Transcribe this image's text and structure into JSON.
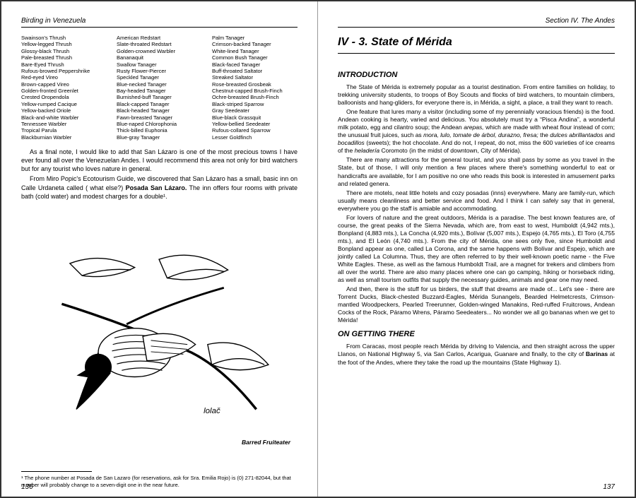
{
  "left": {
    "running_head": "Birding in Venezuela",
    "page_num": "136",
    "col1": [
      "Swainson's Thrush",
      "Yellow-legged Thrush",
      "Glossy-black Thrush",
      "Pale-breasted Thrush",
      "Bare-Eyed Thrush",
      "Rufous-browed Peppershrike",
      "Red-eyed Vireo",
      "Brown-capped Vireo",
      "Golden-fronted Greenlet",
      "Crested Oropendola",
      "Yellow-rumped Cacique",
      "Yellow-backed Oriole",
      "Black-and-white Warbler",
      "Tennessee Warbler",
      "Tropical Parula",
      "Blackburnian Warbler"
    ],
    "col2": [
      "American Redstart",
      "Slate-throated Redstart",
      "Golden-crowned Warbler",
      "Bananaquit",
      "Swallow Tanager",
      "Rusty Flower-Piercer",
      "Speckled Tanager",
      "Blue-necked Tanager",
      "Bay-headed Tanager",
      "Burnished-buff Tanager",
      "Black-capped Tanager",
      "Black-headed Tanager",
      "Fawn-breasted Tanager",
      "Blue-naped Chlorophonia",
      "Thick-billed Euphonia",
      "Blue-gray Tanager"
    ],
    "col3": [
      "Palm Tanager",
      "Crimson-backed Tanager",
      "White-lined Tanager",
      "Common Bush Tanager",
      "Black-faced Tanager",
      "Buff-throated Saltator",
      "Streaked Saltator",
      "Rose-breasted Grosbeak",
      "Chestnut-capped Brush-Finch",
      "Ochre-breasted Brush-Finch",
      "Black-striped Sparrow",
      "Gray Seedeater",
      "Blue-black Grassquit",
      "Yellow-bellied Seedeater",
      "Rufous-collared Sparrow",
      "Lesser Goldfinch"
    ],
    "para1": "As a final note, I would like to add that San Lázaro is one of the most precious towns I have ever found all over the Venezuelan Andes. I would recommend this area not only for bird watchers but for any tourist who loves nature in general.",
    "para2_a": "From Miro Popic's Ecotourism Guide, we discovered that San Lázaro has a small, basic inn on Calle Urdaneta called ( what else?) ",
    "para2_b": "Posada San Lázaro.",
    "para2_c": " The inn offers four rooms with private bath (cold water) and modest charges for a double¹.",
    "caption": "Barred Fruiteater",
    "footnote": "¹  The phone number at Posada de San Lazaro (for reservations, ask for Sra. Emilia Rojo) is (0) 271-82044, but that number will probably change to a seven-digit one in the near future."
  },
  "right": {
    "running_head": "Section IV. The Andes",
    "page_num": "137",
    "chapter_title": "IV - 3. State of Mérida",
    "intro_head": "INTRODUCTION",
    "p1": "The State of Mérida is extremely popular as a tourist destination. From entire families on holiday, to trekking university students, to troops of Boy Scouts and flocks of bird watchers, to mountain climbers, balloonists and hang-gliders, for everyone there is, in Mérida, a sight, a place, a trail they want to reach.",
    "p2_a": "One feature that lures many a visitor (including some of my perennially voracious friends) is the food. Andean cooking is hearty, varied and delicious. You absolutely must try a “Pisca Andina”, a wonderful milk potato, egg and cilantro soup; the Andean ",
    "p2_b": "arepas,",
    "p2_c": " which are made with wheat flour instead of corn; the unusual fruit juices, such as ",
    "p2_d": "mora, lulo, tomate de árbol, durazno, fresa;",
    "p2_e": " the ",
    "p2_f": "dulces abrillantados",
    "p2_g": " and ",
    "p2_h": "bocadillos",
    "p2_i": " (sweets); the hot chocolate. And do not, I repeat, do not, miss the 600 varieties of ice creams of the ",
    "p2_j": "heladería",
    "p2_k": " Coromoto (in the midst of downtown, City of Mérida).",
    "p3": "There are many attractions for the general tourist, and you shall pass by some as you travel in the State, but of those, I will only mention a few places where there's something wonderful to eat or handicrafts are available, for I am positive no one who reads this book is interested in amusement parks and related genera.",
    "p4": "There are motels, neat little hotels and cozy posadas (inns) everywhere. Many are family-run, which usually means cleanliness and better service and food. And I think I can safely say that in general, everywhere you go the staff is amiable and accommodating.",
    "p5": "For lovers of nature and the great outdoors, Mérida is a paradise. The best known features are, of course, the great peaks of the Sierra Nevada, which are, from east to west, Humboldt (4,942 mts.), Bonpland (4,883 mts.), La Concha (4,920 mts.), Bolívar (5,007 mts.), Espejo (4,765 mts.), El Toro (4,755 mts.), and El León (4,740 mts.). From the city of Mérida, one sees only five, since Humboldt and Bonpland appear as one, called La Corona, and the same happens with Bolívar and Espejo, which are jointly called La Columna. Thus, they are often referred to by their well-known poetic name - the Five White Eagles. These, as well as the famous Humboldt Trail, are a magnet for trekers and climbers from all over the world. There are also many places where one can go camping, hiking or horseback riding, as well as small tourism outfits that supply the necessary guides, animals and gear one may need.",
    "p6": "And then, there is the stuff for us birders, the stuff that dreams are made of... Let's see - there are Torrent Ducks, Black-chested Buzzard-Eagles, Mérida Sunangels, Bearded Helmetcrests, Crimson-mantled Woodpeckers, Pearled Treerunner, Golden-winged Manakins, Red-ruffed Fruitcrows, Andean Cocks of the Rock, Páramo Wrens, Páramo Seedeaters... No wonder we all go bananas when we get to Mérida!",
    "getting_head": "ON GETTING THERE",
    "p7_a": "From Caracas, most people reach Mérida by driving to Valencia, and then straight across the upper Llanos, on National Highway 5, via San Carlos, Acarigua, Guanare and finally, to the city of ",
    "p7_b": "Barinas",
    "p7_c": " at the foot of the Andes, where they take the road up the mountains (State Highway 1)."
  }
}
